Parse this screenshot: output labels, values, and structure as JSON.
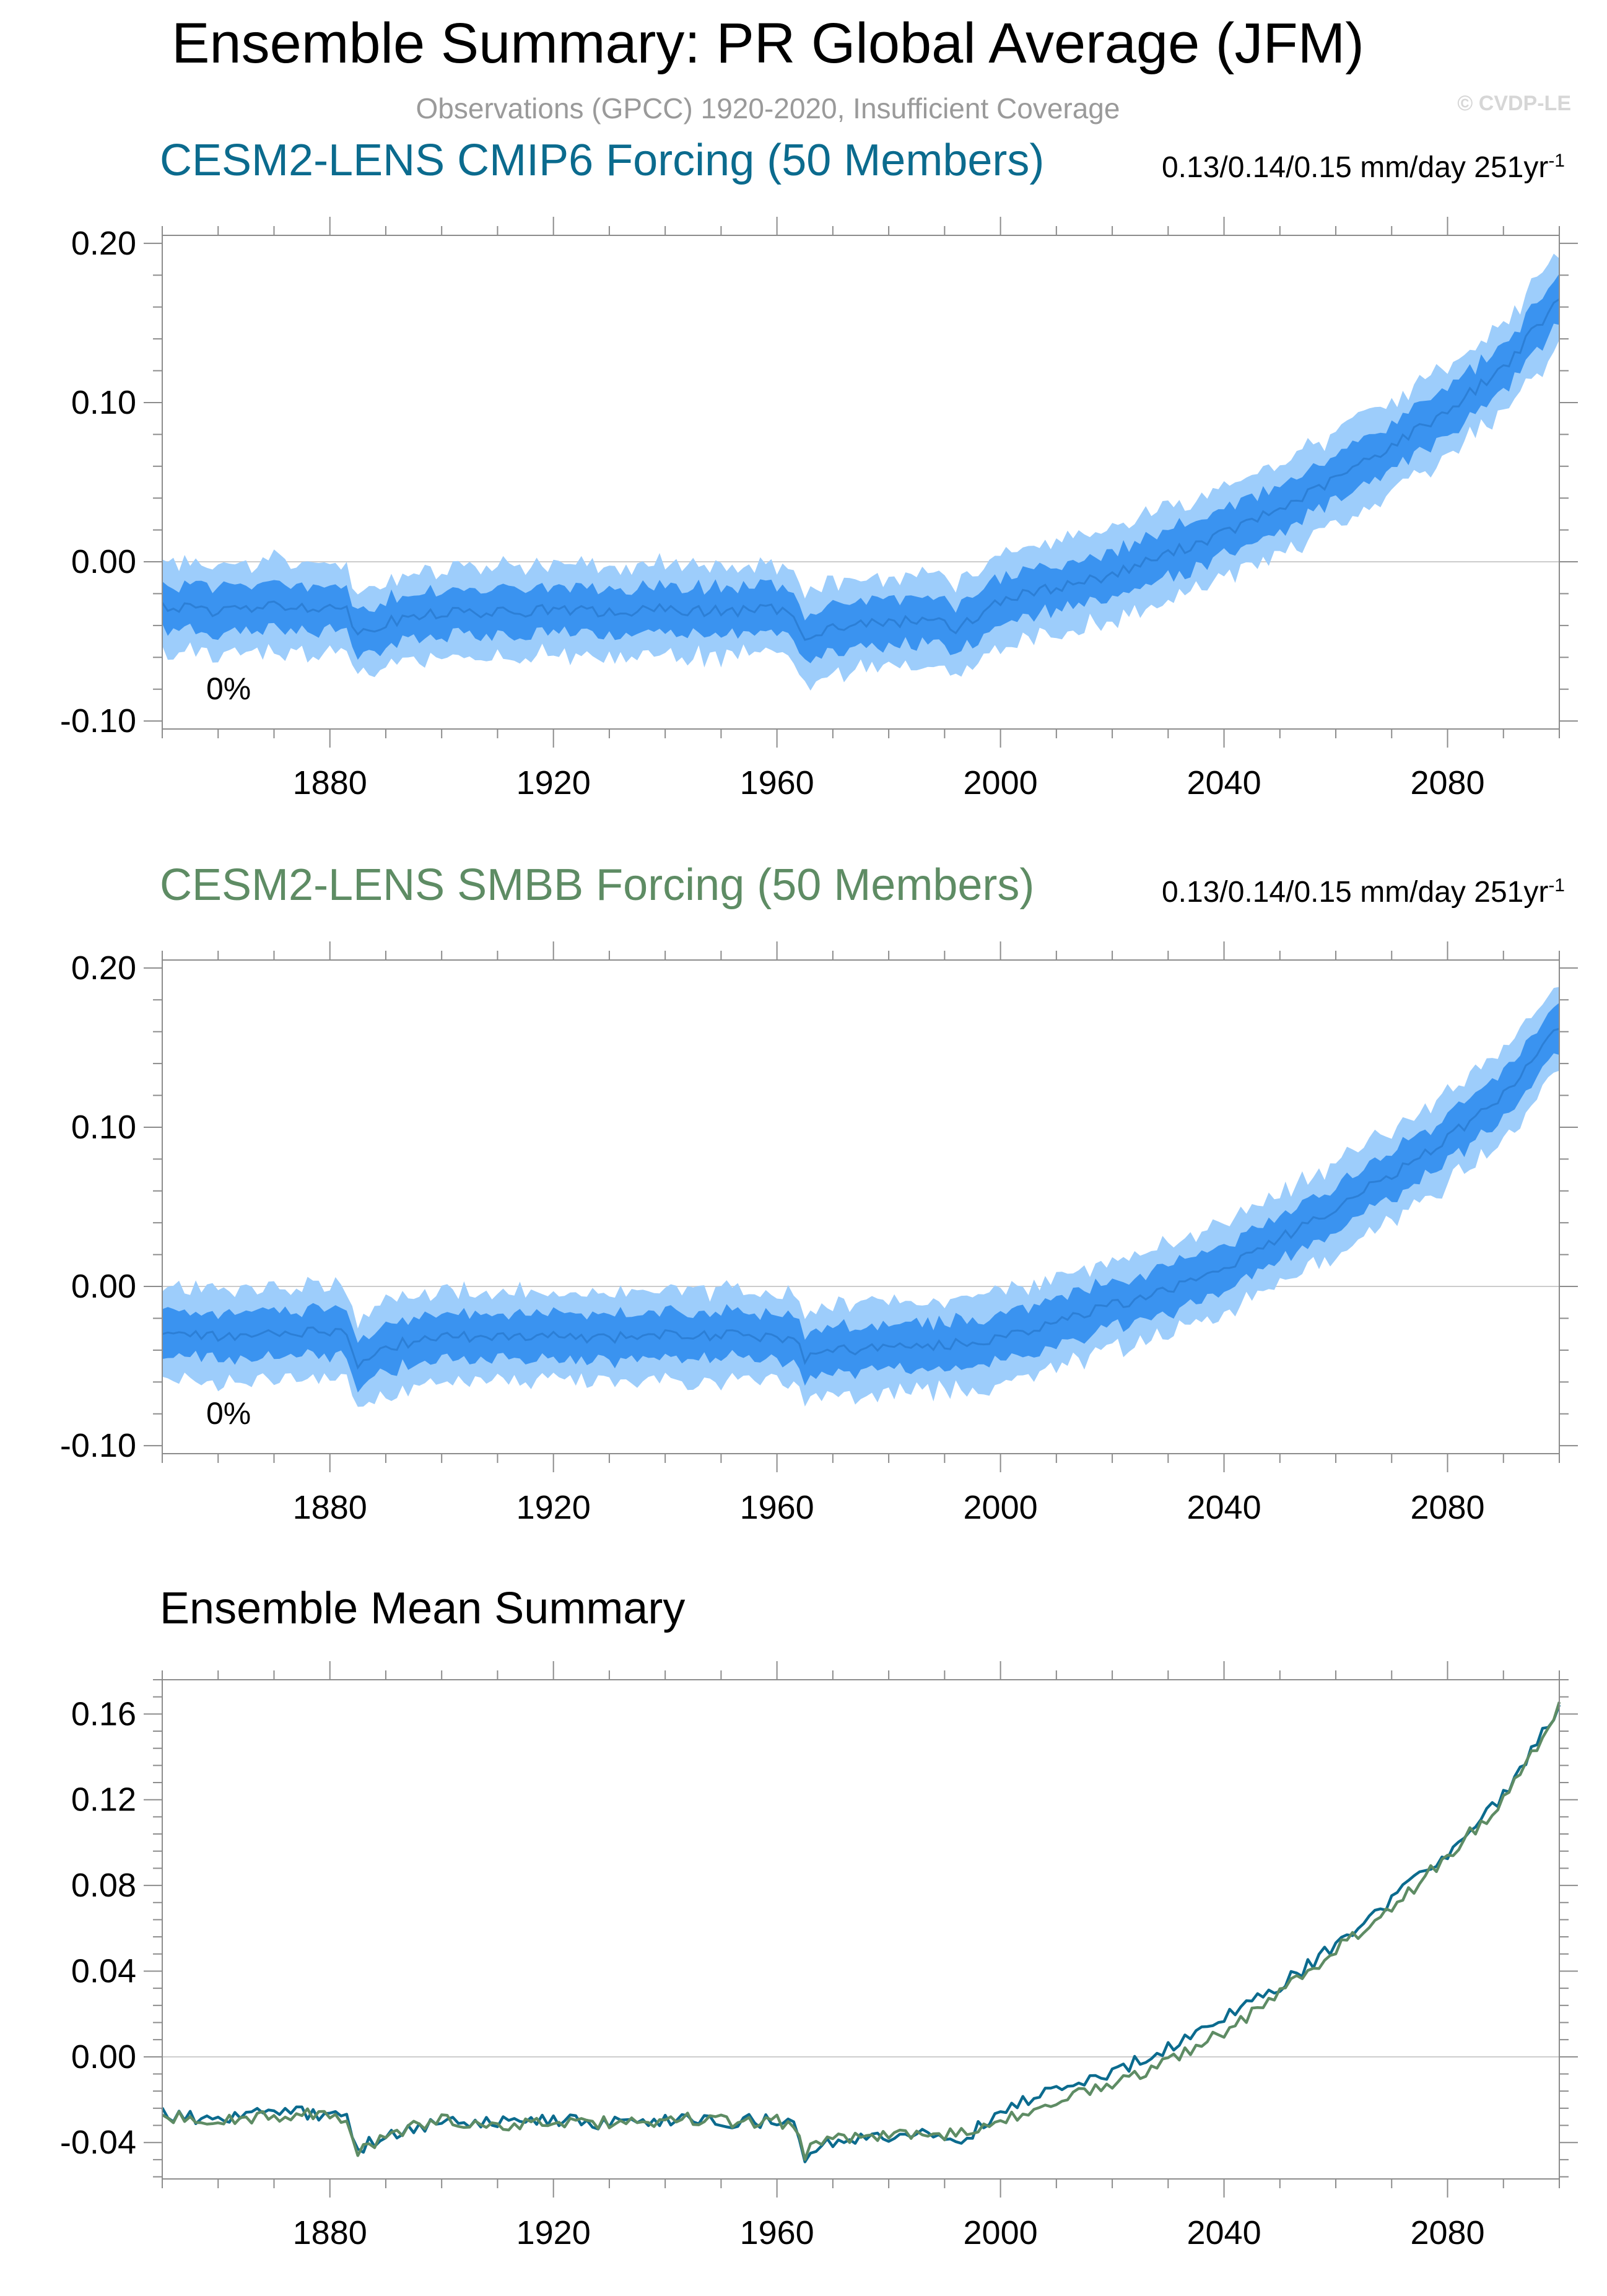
{
  "header": {
    "title": "Ensemble Summary: PR Global Average (JFM)",
    "subtitle": "Observations (GPCC) 1920-2020, Insufficient Coverage",
    "copyright": "© CVDP-LE"
  },
  "colors": {
    "band_outer": "#9dcdfb",
    "band_inner": "#3a93f0",
    "ens_mean_line": "#2c7fd6",
    "cmip6_title": "#0b6b8e",
    "smbb_title": "#5e8c64",
    "summary_cmip6": "#0b6b8e",
    "summary_smbb": "#5e8c64",
    "zero_line": "#cccccc",
    "axis": "#8c8c8c"
  },
  "panels": [
    {
      "title": "CESM2-LENS CMIP6 Forcing (50 Members)",
      "stats_text": "0.13/0.14/0.15 mm/day 251yr",
      "stats_exp": "-1",
      "pct_label": "0%"
    },
    {
      "title": "CESM2-LENS SMBB Forcing (50 Members)",
      "stats_text": "0.13/0.14/0.15 mm/day 251yr",
      "stats_exp": "-1",
      "pct_label": "0%"
    },
    {
      "title": "Ensemble Mean Summary"
    }
  ],
  "chart_data": [
    {
      "type": "area",
      "title": "CESM2-LENS CMIP6 Forcing (50 Members)",
      "xlim": [
        1850,
        2100
      ],
      "ylim": [
        -0.105,
        0.205
      ],
      "xticks": [
        1880,
        1920,
        1960,
        2000,
        2040,
        2080
      ],
      "yticks": [
        -0.1,
        0.0,
        0.1,
        0.2
      ],
      "ytick_labels": [
        "-0.10",
        "0.00",
        "0.10",
        "0.20"
      ],
      "series": [
        {
          "values_note": "ensemble mean with 10-90% and min-max spread",
          "x": [
            1850,
            1860,
            1870,
            1880,
            1883,
            1885,
            1890,
            1900,
            1910,
            1920,
            1930,
            1940,
            1950,
            1960,
            1963,
            1965,
            1970,
            1980,
            1990,
            1992,
            1995,
            2000,
            2010,
            2020,
            2030,
            2040,
            2050,
            2060,
            2070,
            2080,
            2090,
            2100
          ],
          "mean": [
            -0.028,
            -0.031,
            -0.028,
            -0.028,
            -0.03,
            -0.045,
            -0.038,
            -0.032,
            -0.032,
            -0.03,
            -0.032,
            -0.03,
            -0.031,
            -0.03,
            -0.033,
            -0.046,
            -0.041,
            -0.038,
            -0.036,
            -0.043,
            -0.036,
            -0.024,
            -0.016,
            -0.008,
            0.005,
            0.018,
            0.033,
            0.052,
            0.073,
            0.095,
            0.122,
            0.164
          ],
          "spread_inner": 0.012,
          "spread_outer": 0.024
        }
      ]
    },
    {
      "type": "area",
      "title": "CESM2-LENS SMBB Forcing (50 Members)",
      "xlim": [
        1850,
        2100
      ],
      "ylim": [
        -0.105,
        0.205
      ],
      "xticks": [
        1880,
        1920,
        1960,
        2000,
        2040,
        2080
      ],
      "yticks": [
        -0.1,
        0.0,
        0.1,
        0.2
      ],
      "ytick_labels": [
        "-0.10",
        "0.00",
        "0.10",
        "0.20"
      ],
      "series": [
        {
          "x": [
            1850,
            1860,
            1870,
            1880,
            1883,
            1885,
            1890,
            1900,
            1910,
            1920,
            1930,
            1940,
            1950,
            1960,
            1963,
            1965,
            1970,
            1980,
            1990,
            1995,
            2000,
            2010,
            2020,
            2030,
            2040,
            2050,
            2060,
            2070,
            2080,
            2090,
            2100
          ],
          "mean": [
            -0.028,
            -0.032,
            -0.029,
            -0.028,
            -0.03,
            -0.048,
            -0.038,
            -0.031,
            -0.032,
            -0.031,
            -0.032,
            -0.03,
            -0.031,
            -0.031,
            -0.033,
            -0.045,
            -0.04,
            -0.038,
            -0.037,
            -0.035,
            -0.032,
            -0.022,
            -0.012,
            -0.002,
            0.012,
            0.03,
            0.05,
            0.07,
            0.093,
            0.12,
            0.163
          ],
          "spread_inner": 0.012,
          "spread_outer": 0.024
        }
      ]
    },
    {
      "type": "line",
      "title": "Ensemble Mean Summary",
      "xlim": [
        1850,
        2100
      ],
      "ylim": [
        -0.057,
        0.176
      ],
      "xticks": [
        1880,
        1920,
        1960,
        2000,
        2040,
        2080
      ],
      "yticks": [
        -0.04,
        0.0,
        0.04,
        0.08,
        0.12,
        0.16
      ],
      "ytick_labels": [
        "-0.04",
        "0.00",
        "0.04",
        "0.08",
        "0.12",
        "0.16"
      ],
      "series": [
        {
          "color_key": "summary_cmip6",
          "x": [
            1850,
            1860,
            1870,
            1880,
            1883,
            1885,
            1890,
            1900,
            1910,
            1920,
            1930,
            1940,
            1950,
            1960,
            1963,
            1965,
            1970,
            1980,
            1990,
            1992,
            1995,
            2000,
            2010,
            2020,
            2030,
            2040,
            2050,
            2060,
            2070,
            2080,
            2090,
            2100
          ],
          "values": [
            -0.027,
            -0.03,
            -0.026,
            -0.027,
            -0.029,
            -0.043,
            -0.036,
            -0.031,
            -0.031,
            -0.03,
            -0.031,
            -0.029,
            -0.03,
            -0.03,
            -0.032,
            -0.046,
            -0.04,
            -0.037,
            -0.036,
            -0.042,
            -0.035,
            -0.024,
            -0.016,
            -0.008,
            0.005,
            0.018,
            0.033,
            0.052,
            0.073,
            0.095,
            0.122,
            0.164
          ]
        },
        {
          "color_key": "summary_smbb",
          "x": [
            1850,
            1860,
            1870,
            1880,
            1883,
            1885,
            1890,
            1900,
            1910,
            1920,
            1930,
            1940,
            1950,
            1960,
            1963,
            1965,
            1970,
            1980,
            1990,
            1995,
            2000,
            2010,
            2020,
            2030,
            2040,
            2050,
            2060,
            2070,
            2080,
            2090,
            2100
          ],
          "values": [
            -0.027,
            -0.03,
            -0.027,
            -0.027,
            -0.029,
            -0.045,
            -0.036,
            -0.03,
            -0.031,
            -0.031,
            -0.031,
            -0.029,
            -0.03,
            -0.03,
            -0.032,
            -0.045,
            -0.039,
            -0.037,
            -0.037,
            -0.035,
            -0.03,
            -0.021,
            -0.012,
            -0.002,
            0.012,
            0.03,
            0.05,
            0.07,
            0.093,
            0.12,
            0.163
          ]
        }
      ]
    }
  ]
}
